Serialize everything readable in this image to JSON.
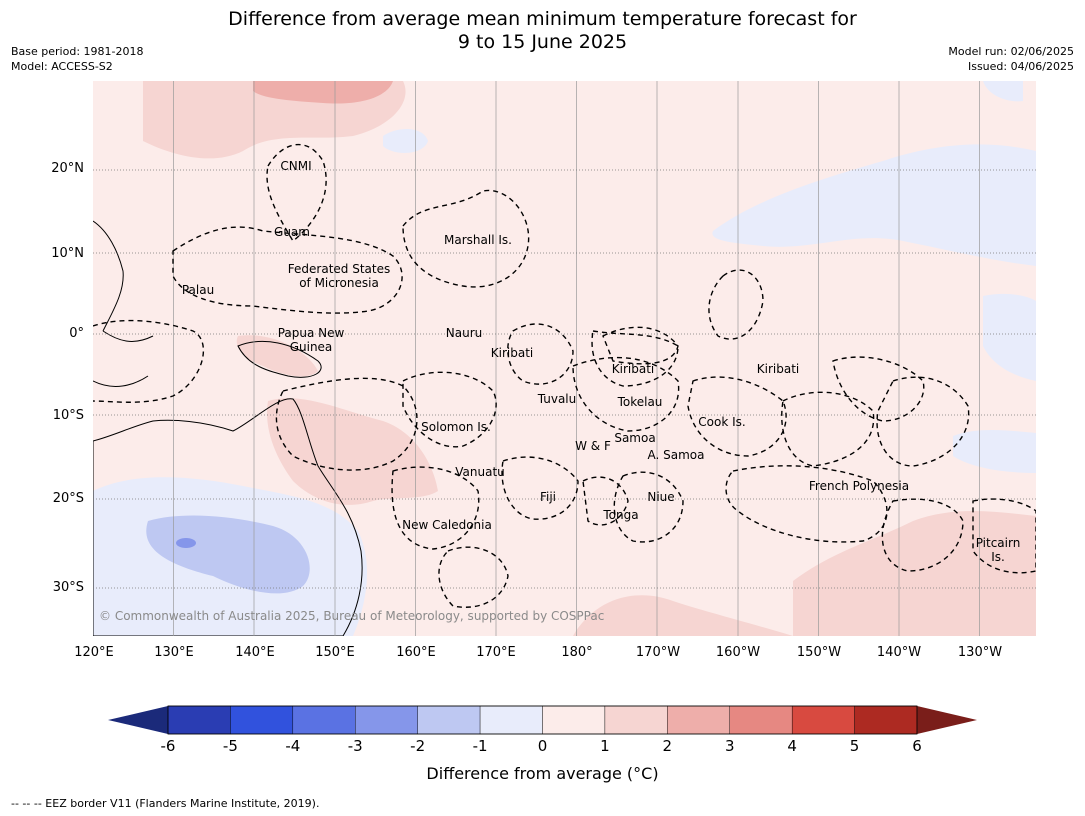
{
  "title_line1": "Difference from average mean minimum temperature forecast for",
  "title_line2": "9 to 15 June 2025",
  "meta": {
    "base_period": "Base period: 1981-2018",
    "model": "Model: ACCESS-S2",
    "model_run": "Model run: 02/06/2025",
    "issued": "Issued: 04/06/2025"
  },
  "lat_labels": [
    "20°N",
    "10°N",
    "0°",
    "10°S",
    "20°S",
    "30°S"
  ],
  "lon_labels": [
    "120°E",
    "130°E",
    "140°E",
    "150°E",
    "160°E",
    "170°E",
    "180°",
    "170°W",
    "160°W",
    "150°W",
    "140°W",
    "130°W"
  ],
  "places": {
    "cnmi": "CNMI",
    "guam": "Guam",
    "marshall": "Marshall Is.",
    "fsm_1": "Federated States",
    "fsm_2": "of Micronesia",
    "palau": "Palau",
    "png_1": "Papua New",
    "png_2": "Guinea",
    "nauru": "Nauru",
    "kiribati_w": "Kiribati",
    "kiribati_c": "Kiribati",
    "kiribati_e": "Kiribati",
    "tuvalu": "Tuvalu",
    "tokelau": "Tokelau",
    "cook": "Cook Is.",
    "solomon": "Solomon Is.",
    "wf": "W & F",
    "samoa": "Samoa",
    "asamoa": "A. Samoa",
    "vanuatu": "Vanuatu",
    "fiji": "Fiji",
    "niue": "Niue",
    "tonga": "Tonga",
    "french_polynesia": "French Polynesia",
    "new_caledonia": "New Caledonia",
    "pitcairn_1": "Pitcairn",
    "pitcairn_2": "Is."
  },
  "copyright": "© Commonwealth of Australia 2025, Bureau of Meteorology, supported by COSPPac",
  "colorbar": {
    "ticks": [
      "-6",
      "-5",
      "-4",
      "-3",
      "-2",
      "-1",
      "0",
      "1",
      "2",
      "3",
      "4",
      "5",
      "6"
    ],
    "colors": [
      "#1b2a7a",
      "#2a3db3",
      "#3152dd",
      "#5a72e3",
      "#8596ea",
      "#bec8f2",
      "#e8ecfb",
      "#fcecea",
      "#f6d5d2",
      "#eeaeaa",
      "#e68882",
      "#d84a40",
      "#ad2a22",
      "#7a1e1a"
    ],
    "label": "Difference from average (°C)"
  },
  "footnote": "--  --  -- EEZ border V11 (Flanders Marine Institute, 2019)."
}
